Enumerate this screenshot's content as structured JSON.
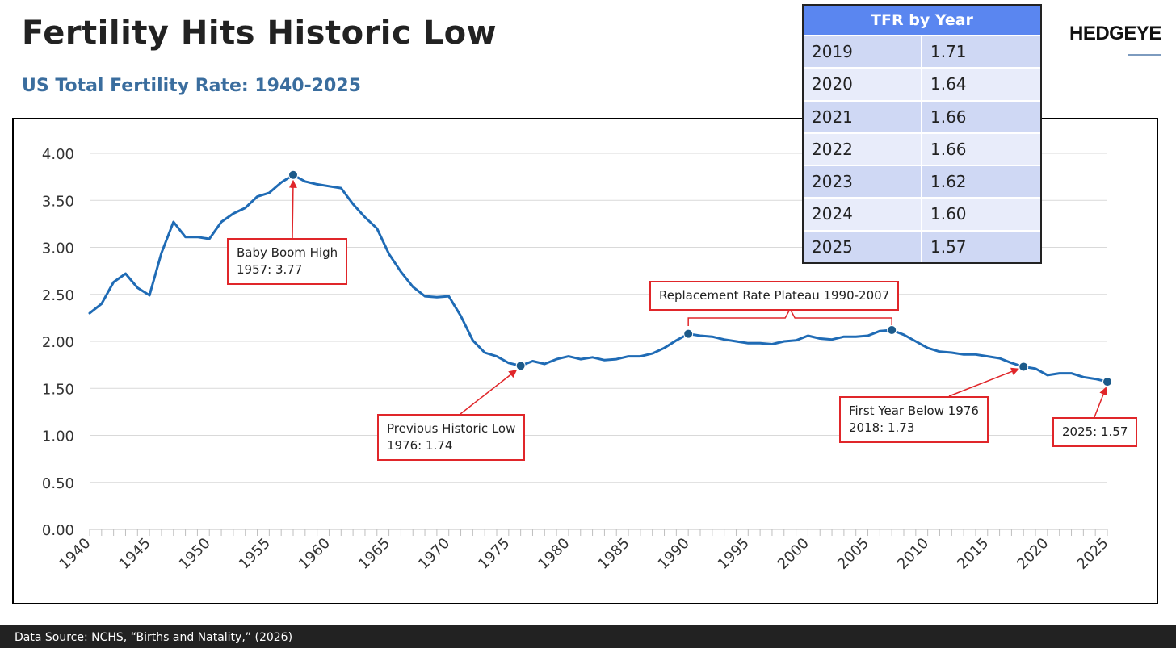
{
  "header": {
    "title": "Fertility Hits Historic Low",
    "subtitle": "US Total Fertility Rate: 1940-2025",
    "logo": "HEDGEYE"
  },
  "table": {
    "title": "TFR by Year",
    "rows": [
      {
        "year": "2019",
        "value": "1.71"
      },
      {
        "year": "2020",
        "value": "1.64"
      },
      {
        "year": "2021",
        "value": "1.66"
      },
      {
        "year": "2022",
        "value": "1.66"
      },
      {
        "year": "2023",
        "value": "1.62"
      },
      {
        "year": "2024",
        "value": "1.60"
      },
      {
        "year": "2025",
        "value": "1.57"
      }
    ]
  },
  "annotations": {
    "boom": {
      "line1": "Baby Boom High",
      "line2": "1957: 3.77"
    },
    "prev_low": {
      "line1": "Previous Historic Low",
      "line2": "1976: 1.74"
    },
    "plateau": {
      "line1": "Replacement Rate Plateau 1990-2007"
    },
    "first_below": {
      "line1": "First Year Below 1976",
      "line2": "2018: 1.73"
    },
    "latest": {
      "line1": "2025: 1.57"
    }
  },
  "footer": {
    "source": "Data Source: NCHS, “Births and Natality,” (2026)"
  },
  "colors": {
    "line": "#1f6bb5",
    "marker": "#1c5a8a",
    "annotation": "#e0262a",
    "grid": "#d9d9d9"
  },
  "chart_data": {
    "type": "line",
    "title": "US Total Fertility Rate: 1940-2025",
    "xlabel": "",
    "ylabel": "",
    "xlim": [
      1940,
      2025
    ],
    "ylim": [
      0,
      4
    ],
    "y_ticks": [
      0,
      0.5,
      1,
      1.5,
      2,
      2.5,
      3,
      3.5,
      4
    ],
    "y_tick_labels": [
      "0.00",
      "0.50",
      "1.00",
      "1.50",
      "2.00",
      "2.50",
      "3.00",
      "3.50",
      "4.00"
    ],
    "x_ticks": [
      1940,
      1945,
      1950,
      1955,
      1960,
      1965,
      1970,
      1975,
      1980,
      1985,
      1990,
      1995,
      2000,
      2005,
      2010,
      2015,
      2020,
      2025
    ],
    "x_tick_labels": [
      "1940",
      "1945",
      "1950",
      "1955",
      "1960",
      "1965",
      "1970",
      "1975",
      "1980",
      "1985",
      "1990",
      "1995",
      "2000",
      "2005",
      "2010",
      "2015",
      "2020",
      "2025"
    ],
    "grid": true,
    "series": [
      {
        "name": "US Total Fertility Rate",
        "x": [
          1940,
          1941,
          1942,
          1943,
          1944,
          1945,
          1946,
          1947,
          1948,
          1949,
          1950,
          1951,
          1952,
          1953,
          1954,
          1955,
          1956,
          1957,
          1958,
          1959,
          1960,
          1961,
          1962,
          1963,
          1964,
          1965,
          1966,
          1967,
          1968,
          1969,
          1970,
          1971,
          1972,
          1973,
          1974,
          1975,
          1976,
          1977,
          1978,
          1979,
          1980,
          1981,
          1982,
          1983,
          1984,
          1985,
          1986,
          1987,
          1988,
          1989,
          1990,
          1991,
          1992,
          1993,
          1994,
          1995,
          1996,
          1997,
          1998,
          1999,
          2000,
          2001,
          2002,
          2003,
          2004,
          2005,
          2006,
          2007,
          2008,
          2009,
          2010,
          2011,
          2012,
          2013,
          2014,
          2015,
          2016,
          2017,
          2018,
          2019,
          2020,
          2021,
          2022,
          2023,
          2024,
          2025
        ],
        "y": [
          2.3,
          2.4,
          2.63,
          2.72,
          2.57,
          2.49,
          2.94,
          3.27,
          3.11,
          3.11,
          3.09,
          3.27,
          3.36,
          3.42,
          3.54,
          3.58,
          3.69,
          3.77,
          3.7,
          3.67,
          3.65,
          3.63,
          3.46,
          3.32,
          3.2,
          2.93,
          2.74,
          2.58,
          2.48,
          2.47,
          2.48,
          2.27,
          2.01,
          1.88,
          1.84,
          1.77,
          1.74,
          1.79,
          1.76,
          1.81,
          1.84,
          1.81,
          1.83,
          1.8,
          1.81,
          1.84,
          1.84,
          1.87,
          1.93,
          2.01,
          2.08,
          2.06,
          2.05,
          2.02,
          2.0,
          1.98,
          1.98,
          1.97,
          2.0,
          2.01,
          2.06,
          2.03,
          2.02,
          2.05,
          2.05,
          2.06,
          2.11,
          2.12,
          2.07,
          2.0,
          1.93,
          1.89,
          1.88,
          1.86,
          1.86,
          1.84,
          1.82,
          1.77,
          1.73,
          1.71,
          1.64,
          1.66,
          1.66,
          1.62,
          1.6,
          1.57
        ]
      }
    ],
    "highlight_points": [
      {
        "x": 1957,
        "y": 3.77
      },
      {
        "x": 1976,
        "y": 1.74
      },
      {
        "x": 1990,
        "y": 2.08
      },
      {
        "x": 2007,
        "y": 2.12
      },
      {
        "x": 2018,
        "y": 1.73
      },
      {
        "x": 2025,
        "y": 1.57
      }
    ]
  }
}
